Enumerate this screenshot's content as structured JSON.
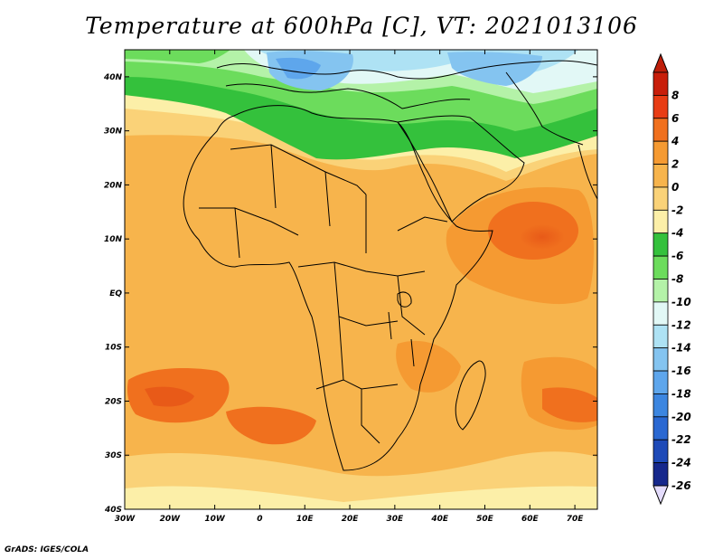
{
  "title": "Temperature at 600hPa [C], VT: 2021013106",
  "credit": "GrADS: IGES/COLA",
  "map": {
    "lon_range": [
      -30,
      75
    ],
    "lat_range": [
      -40,
      45
    ],
    "lon_ticks": [
      {
        "value": -30,
        "label": "30W"
      },
      {
        "value": -20,
        "label": "20W"
      },
      {
        "value": -10,
        "label": "10W"
      },
      {
        "value": 0,
        "label": "0"
      },
      {
        "value": 10,
        "label": "10E"
      },
      {
        "value": 20,
        "label": "20E"
      },
      {
        "value": 30,
        "label": "30E"
      },
      {
        "value": 40,
        "label": "40E"
      },
      {
        "value": 50,
        "label": "50E"
      },
      {
        "value": 60,
        "label": "60E"
      },
      {
        "value": 70,
        "label": "70E"
      }
    ],
    "lat_ticks": [
      {
        "value": 40,
        "label": "40N"
      },
      {
        "value": 30,
        "label": "30N"
      },
      {
        "value": 20,
        "label": "20N"
      },
      {
        "value": 10,
        "label": "10N"
      },
      {
        "value": 0,
        "label": "EQ"
      },
      {
        "value": -10,
        "label": "10S"
      },
      {
        "value": -20,
        "label": "20S"
      },
      {
        "value": -30,
        "label": "30S"
      },
      {
        "value": -40,
        "label": "40S"
      }
    ]
  },
  "colorbar": {
    "levels": [
      {
        "label": "8",
        "color": "#c81e0a"
      },
      {
        "label": "6",
        "color": "#e83c14"
      },
      {
        "label": "4",
        "color": "#f0701e"
      },
      {
        "label": "2",
        "color": "#f59a32"
      },
      {
        "label": "0",
        "color": "#f7b44c"
      },
      {
        "label": "-2",
        "color": "#fad278"
      },
      {
        "label": "-4",
        "color": "#fcefa8"
      },
      {
        "label": "-6",
        "color": "#34c13c"
      },
      {
        "label": "-8",
        "color": "#6cdc5c"
      },
      {
        "label": "-10",
        "color": "#b4f2a8"
      },
      {
        "label": "-12",
        "color": "#e2f8f6"
      },
      {
        "label": "-14",
        "color": "#aee2f4"
      },
      {
        "label": "-16",
        "color": "#84c4f0"
      },
      {
        "label": "-18",
        "color": "#5ea6ec"
      },
      {
        "label": "-20",
        "color": "#3c86e0"
      },
      {
        "label": "-22",
        "color": "#2a68d2"
      },
      {
        "label": "-24",
        "color": "#1e4ab8"
      },
      {
        "label": "-26",
        "color": "#16288c"
      }
    ],
    "bottom_color": "#e4dcfc",
    "top_color": "#be1e0a"
  }
}
